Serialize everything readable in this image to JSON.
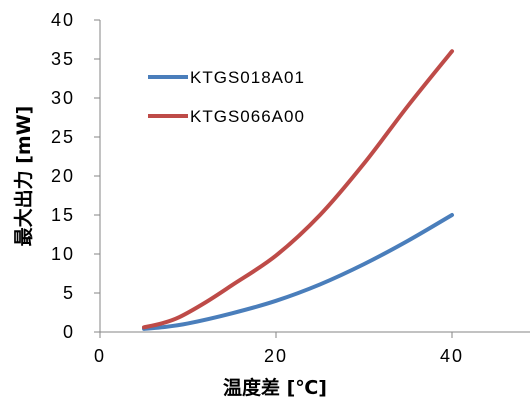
{
  "chart_data": {
    "type": "line",
    "xlabel": "温度差 [℃]",
    "ylabel": "最大出力 [mW]",
    "xlim": [
      0,
      50
    ],
    "ylim": [
      0,
      40
    ],
    "xticks": [
      "0",
      "20",
      "40"
    ],
    "xtick_values": [
      0,
      20,
      40
    ],
    "yticks": [
      "0",
      "5",
      "10",
      "15",
      "20",
      "25",
      "30",
      "35",
      "40"
    ],
    "ytick_values": [
      0,
      5,
      10,
      15,
      20,
      25,
      30,
      35,
      40
    ],
    "grid": false,
    "legend_position": "upper-left",
    "series": [
      {
        "name": "KTGS018A01",
        "color": "#4a7ebb",
        "x": [
          5,
          7,
          10,
          15,
          20,
          25,
          30,
          35,
          40
        ],
        "y": [
          0.4,
          0.6,
          1.1,
          2.4,
          4.0,
          6.1,
          8.7,
          11.7,
          15.0
        ]
      },
      {
        "name": "KTGS066A00",
        "color": "#be4b48",
        "x": [
          5,
          7,
          9,
          12,
          15,
          20,
          25,
          30,
          35,
          40
        ],
        "y": [
          0.6,
          1.1,
          1.9,
          3.8,
          6.0,
          9.8,
          15.0,
          21.6,
          29.0,
          36.0
        ]
      }
    ]
  }
}
